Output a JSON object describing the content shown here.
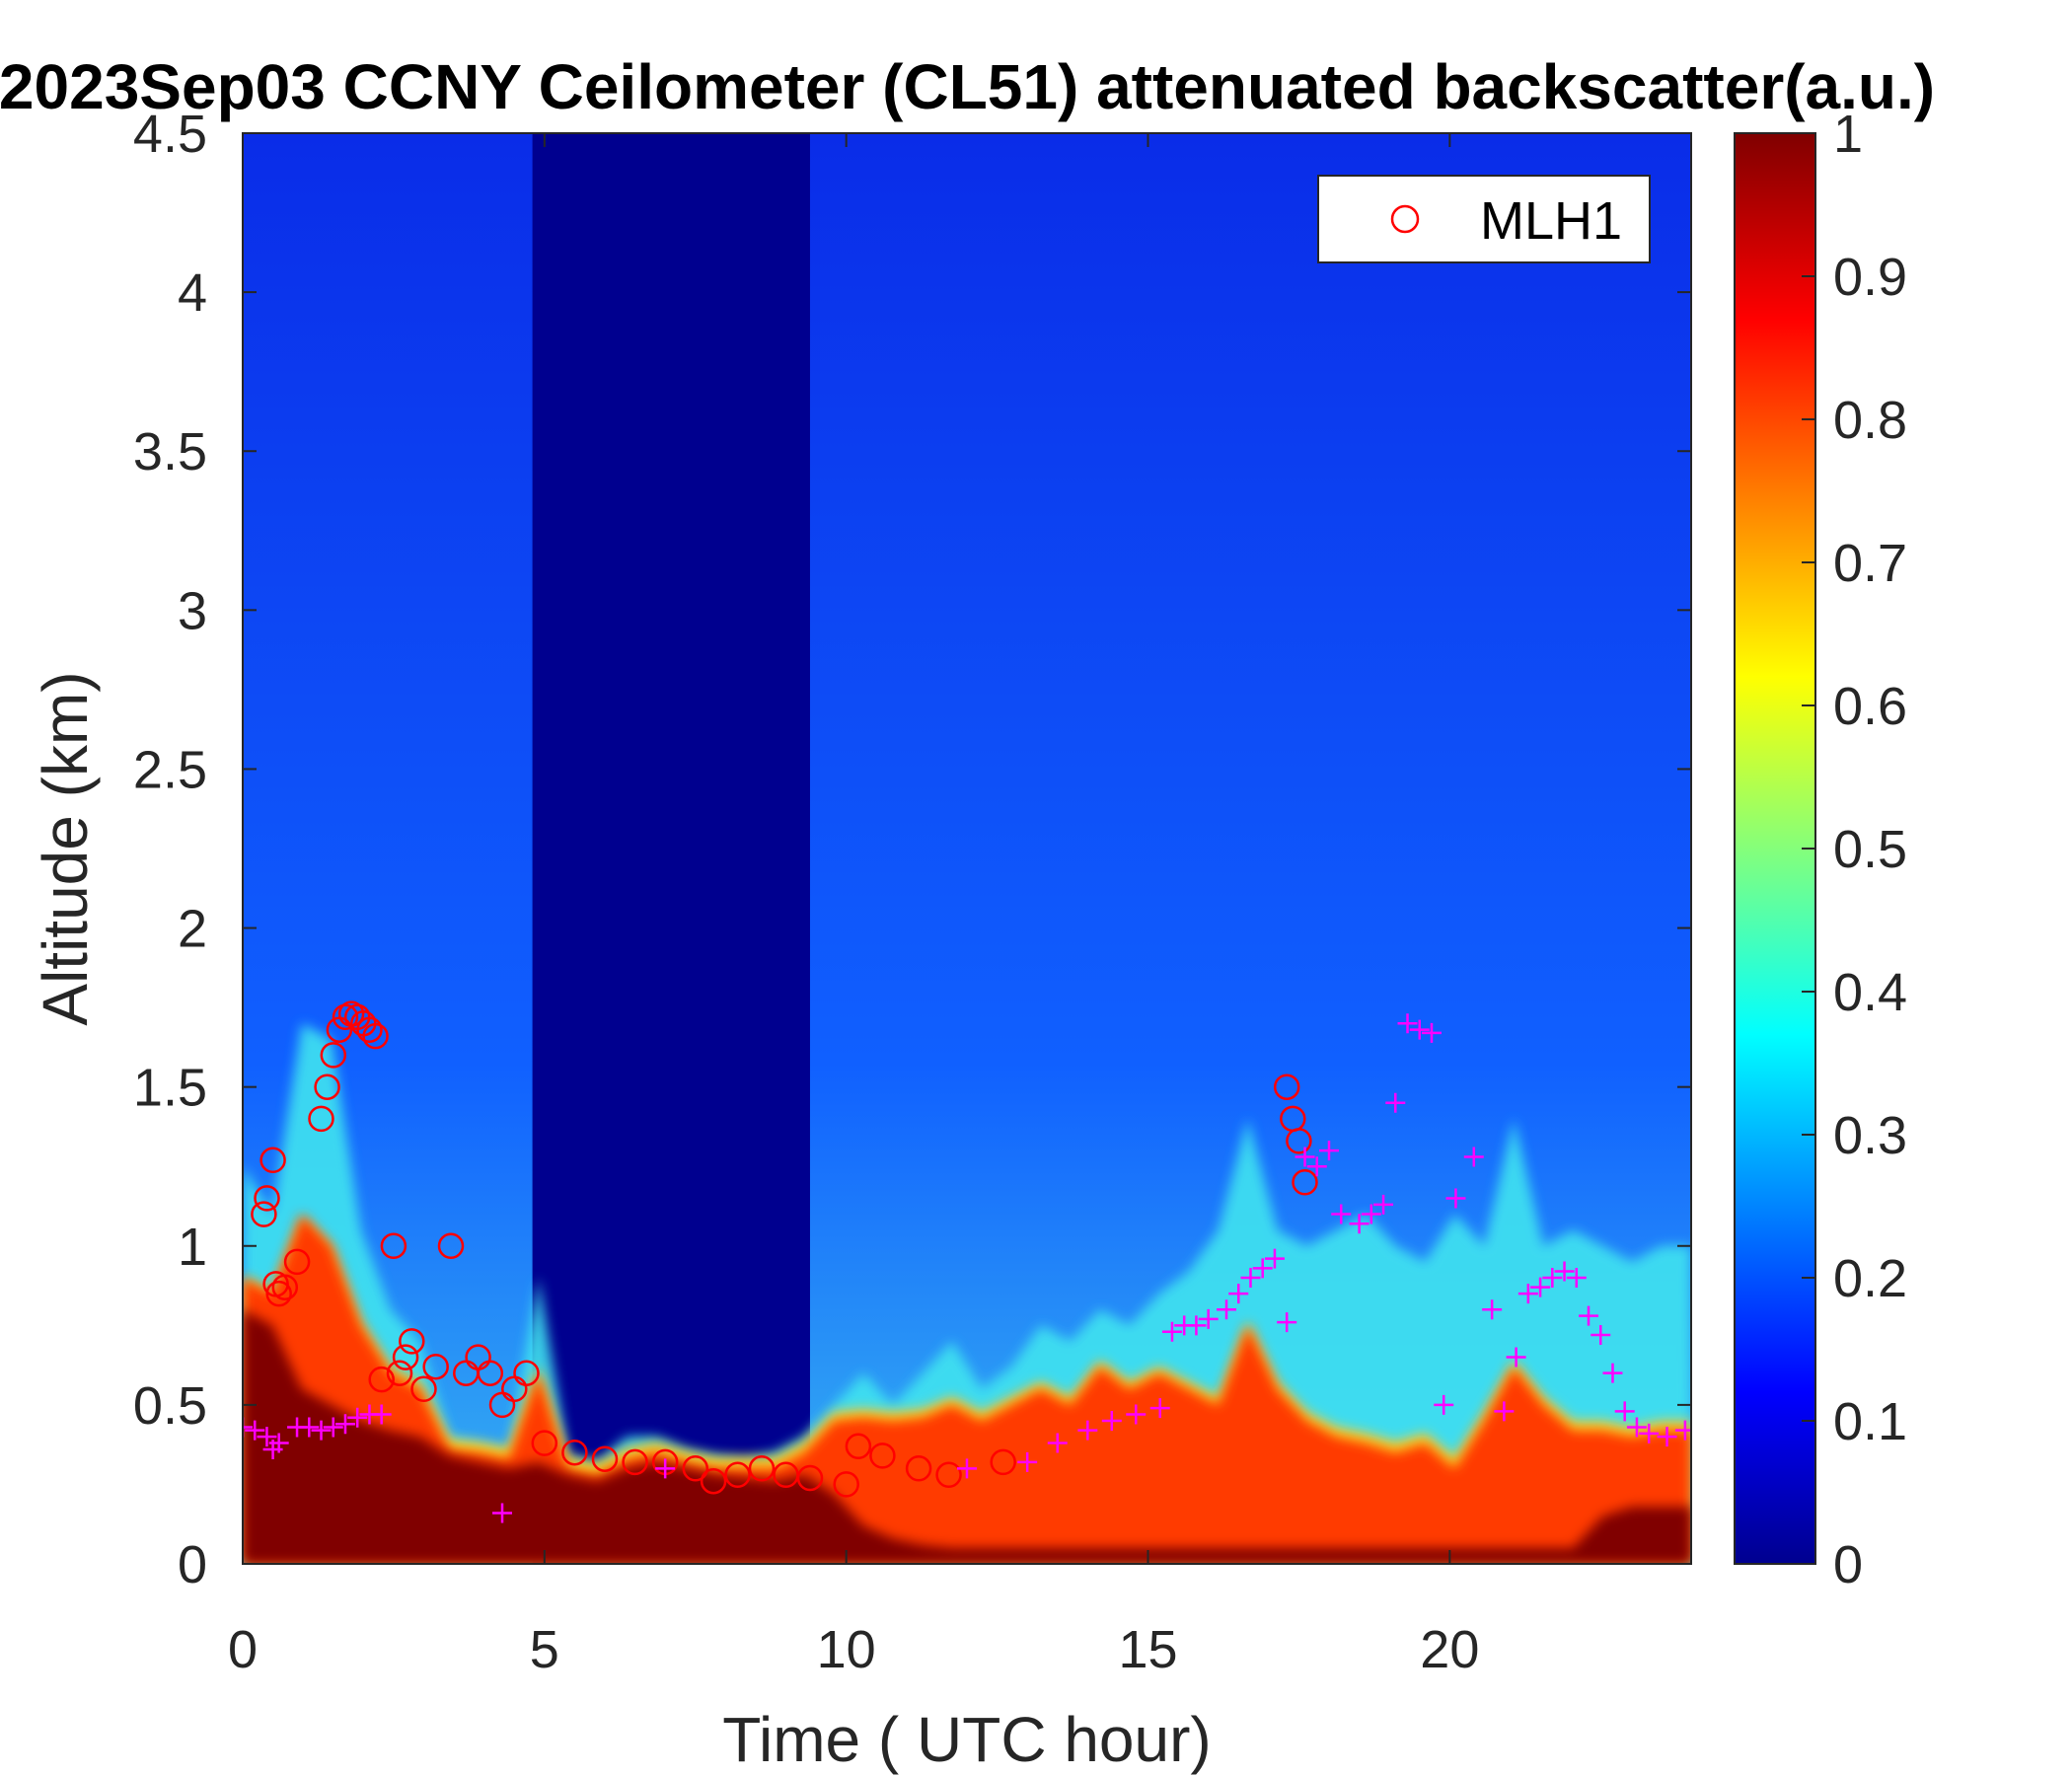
{
  "chart_data": {
    "type": "heatmap",
    "title": "2023Sep03 CCNY Ceilometer (CL51) attenuated backscatter(a.u.)",
    "xlabel": "Time ( UTC hour)",
    "ylabel": "Altitude (km)",
    "xlim": [
      0,
      24
    ],
    "ylim": [
      0,
      4.5
    ],
    "x_ticks": [
      0,
      5,
      10,
      15,
      20
    ],
    "y_ticks": [
      0,
      0.5,
      1,
      1.5,
      2,
      2.5,
      3,
      3.5,
      4,
      4.5
    ],
    "x_tick_labels": [
      "0",
      "5",
      "10",
      "15",
      "20"
    ],
    "y_tick_labels": [
      "0",
      "0.5",
      "1",
      "1.5",
      "2",
      "2.5",
      "3",
      "3.5",
      "4",
      "4.5"
    ],
    "colorbar": {
      "range": [
        0,
        1
      ],
      "ticks": [
        0,
        0.1,
        0.2,
        0.3,
        0.4,
        0.5,
        0.6,
        0.7,
        0.8,
        0.9,
        1
      ],
      "tick_labels": [
        "0",
        "0.1",
        "0.2",
        "0.3",
        "0.4",
        "0.5",
        "0.6",
        "0.7",
        "0.8",
        "0.9",
        "1"
      ],
      "colormap": "jet"
    },
    "grid": false,
    "legend": {
      "placement": "top-right",
      "entries": [
        "MLH1"
      ]
    },
    "colors": {
      "mlh1": "#ff0000",
      "plus_markers": "#ff00ff"
    },
    "layers": {
      "top_km": [
        1.25,
        1.1,
        1.7,
        1.65,
        1.05,
        0.8,
        0.7,
        0.4,
        0.38,
        0.36,
        0.9,
        0.34,
        0.32,
        0.4,
        0.4,
        0.36,
        0.34,
        0.33,
        0.35,
        0.4,
        0.5,
        0.6,
        0.5,
        0.6,
        0.7,
        0.55,
        0.62,
        0.75,
        0.7,
        0.8,
        0.75,
        0.85,
        0.92,
        1.05,
        1.4,
        1.05,
        1.0,
        1.05,
        1.1,
        1.0,
        0.95,
        1.1,
        1.0,
        1.4,
        1.0,
        1.05,
        1.0,
        0.95,
        1.0,
        1.0
      ],
      "red_top_km": [
        0.9,
        0.85,
        1.1,
        1.0,
        0.75,
        0.6,
        0.55,
        0.36,
        0.35,
        0.33,
        0.6,
        0.3,
        0.28,
        0.33,
        0.35,
        0.32,
        0.3,
        0.3,
        0.3,
        0.35,
        0.45,
        0.46,
        0.45,
        0.46,
        0.5,
        0.45,
        0.5,
        0.55,
        0.5,
        0.62,
        0.55,
        0.6,
        0.55,
        0.5,
        0.75,
        0.55,
        0.45,
        0.4,
        0.38,
        0.35,
        0.38,
        0.3,
        0.45,
        0.62,
        0.5,
        0.42,
        0.42,
        0.4,
        0.42,
        0.42
      ],
      "dark_top_km": [
        0.8,
        0.75,
        0.55,
        0.5,
        0.45,
        0.42,
        0.4,
        0.34,
        0.32,
        0.3,
        0.32,
        0.28,
        0.26,
        0.3,
        0.32,
        0.3,
        0.28,
        0.27,
        0.26,
        0.28,
        0.22,
        0.12,
        0.08,
        0.06,
        0.05,
        0.05,
        0.05,
        0.05,
        0.05,
        0.05,
        0.05,
        0.05,
        0.05,
        0.05,
        0.05,
        0.05,
        0.05,
        0.05,
        0.05,
        0.05,
        0.05,
        0.05,
        0.05,
        0.05,
        0.05,
        0.05,
        0.15,
        0.18,
        0.18,
        0.18
      ],
      "night_gap_hours": [
        4.8,
        9.4
      ]
    },
    "series": [
      {
        "name": "MLH1",
        "marker": "circle",
        "x": [
          0.35,
          0.4,
          0.5,
          0.55,
          0.6,
          0.7,
          0.9,
          1.3,
          1.4,
          1.5,
          1.6,
          1.7,
          1.8,
          1.9,
          2.0,
          2.1,
          2.2,
          2.3,
          2.5,
          2.6,
          2.7,
          2.8,
          3.0,
          3.2,
          3.45,
          3.7,
          3.9,
          4.1,
          4.3,
          4.5,
          4.7,
          5.0,
          5.5,
          6.0,
          6.5,
          7.0,
          7.5,
          7.8,
          8.2,
          8.6,
          9.0,
          9.4,
          10.0,
          10.2,
          10.6,
          11.2,
          11.7,
          12.6,
          17.3,
          17.4,
          17.5,
          17.6
        ],
        "y": [
          1.1,
          1.15,
          1.27,
          0.88,
          0.85,
          0.87,
          0.95,
          1.4,
          1.5,
          1.6,
          1.68,
          1.72,
          1.73,
          1.72,
          1.7,
          1.68,
          1.66,
          0.58,
          1.0,
          0.6,
          0.65,
          0.7,
          0.55,
          0.62,
          1.0,
          0.6,
          0.65,
          0.6,
          0.5,
          0.55,
          0.6,
          0.38,
          0.35,
          0.33,
          0.32,
          0.32,
          0.3,
          0.26,
          0.28,
          0.3,
          0.28,
          0.27,
          0.25,
          0.37,
          0.34,
          0.3,
          0.28,
          0.32,
          1.5,
          1.4,
          1.33,
          1.2
        ]
      },
      {
        "name": "",
        "marker": "plus",
        "x": [
          0.0,
          0.2,
          0.4,
          0.5,
          0.6,
          0.9,
          1.1,
          1.3,
          1.5,
          1.7,
          1.9,
          2.1,
          2.3,
          4.3,
          7.0,
          12.0,
          13.0,
          13.5,
          14.0,
          14.4,
          14.8,
          15.2,
          15.4,
          15.6,
          15.8,
          16.0,
          16.3,
          16.5,
          16.7,
          16.9,
          17.1,
          17.3,
          17.6,
          17.8,
          18.0,
          18.2,
          18.5,
          18.7,
          18.9,
          19.1,
          19.3,
          19.5,
          19.7,
          19.9,
          20.1,
          20.4,
          20.7,
          20.9,
          21.1,
          21.3,
          21.5,
          21.7,
          21.9,
          22.1,
          22.3,
          22.5,
          22.7,
          22.9,
          23.1,
          23.3,
          23.6,
          23.9
        ],
        "y": [
          0.43,
          0.42,
          0.4,
          0.36,
          0.38,
          0.43,
          0.43,
          0.42,
          0.43,
          0.44,
          0.46,
          0.47,
          0.47,
          0.16,
          0.3,
          0.3,
          0.32,
          0.38,
          0.42,
          0.45,
          0.47,
          0.49,
          0.73,
          0.75,
          0.75,
          0.77,
          0.8,
          0.85,
          0.9,
          0.93,
          0.96,
          0.76,
          1.28,
          1.25,
          1.3,
          1.1,
          1.07,
          1.1,
          1.13,
          1.45,
          1.7,
          1.68,
          1.67,
          0.5,
          1.15,
          1.28,
          0.8,
          0.48,
          0.65,
          0.85,
          0.87,
          0.9,
          0.92,
          0.9,
          0.78,
          0.72,
          0.6,
          0.48,
          0.43,
          0.41,
          0.4,
          0.42
        ]
      }
    ]
  }
}
